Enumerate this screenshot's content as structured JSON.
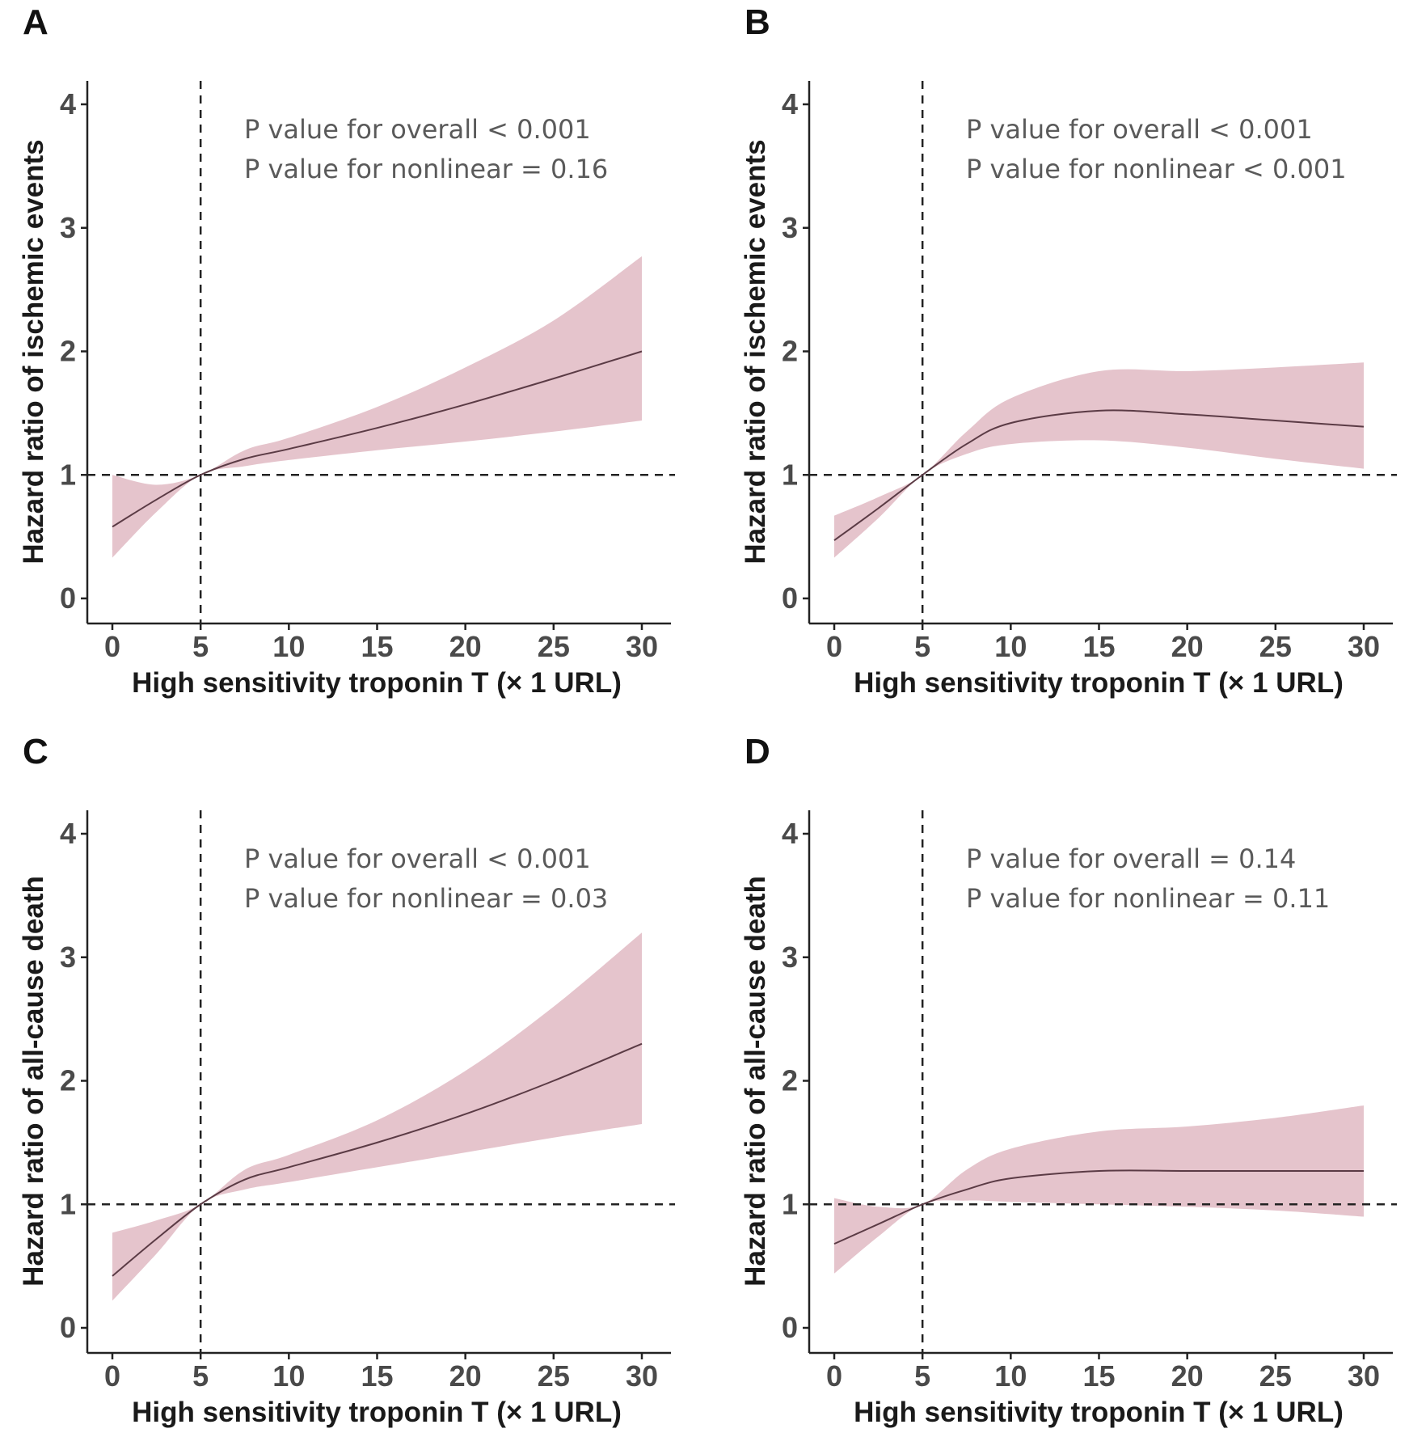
{
  "colors": {
    "ribbon": "#e5c4cc",
    "line": "#5b3b45",
    "axis": "#222222",
    "ref": "#222222"
  },
  "chart_data": [
    {
      "type": "line",
      "panel": "A",
      "xlabel": "High sensitivity troponin T (× 1 URL)",
      "ylabel": "Hazard ratio of ischemic events",
      "xlim": [
        0,
        30
      ],
      "ylim": [
        0,
        4
      ],
      "xticks": [
        "0",
        "5",
        "10",
        "15",
        "20",
        "25",
        "30"
      ],
      "yticks": [
        "0",
        "1",
        "2",
        "3",
        "4"
      ],
      "reference_lines": {
        "x": 5,
        "y": 1
      },
      "annotations": [
        "P value for overall < 0.001",
        "P value for nonlinear = 0.16"
      ],
      "x": [
        0,
        2.5,
        5,
        7.5,
        10,
        15,
        20,
        25,
        30
      ],
      "estimate": [
        0.58,
        0.8,
        1,
        1.13,
        1.21,
        1.38,
        1.57,
        1.78,
        2.0
      ],
      "lower": [
        0.33,
        0.7,
        1,
        1.07,
        1.12,
        1.2,
        1.27,
        1.35,
        1.44
      ],
      "upper": [
        1.0,
        0.92,
        1,
        1.2,
        1.3,
        1.55,
        1.87,
        2.25,
        2.77
      ]
    },
    {
      "type": "line",
      "panel": "B",
      "xlabel": "High sensitivity troponin T (× 1 URL)",
      "ylabel": "Hazard ratio of ischemic events",
      "xlim": [
        0,
        30
      ],
      "ylim": [
        0,
        4
      ],
      "xticks": [
        "0",
        "5",
        "10",
        "15",
        "20",
        "25",
        "30"
      ],
      "yticks": [
        "0",
        "1",
        "2",
        "3",
        "4"
      ],
      "reference_lines": {
        "x": 5,
        "y": 1
      },
      "annotations": [
        "P value for overall < 0.001",
        "P value for nonlinear < 0.001"
      ],
      "x": [
        0,
        2.5,
        5,
        7.5,
        10,
        15,
        20,
        25,
        30
      ],
      "estimate": [
        0.47,
        0.73,
        1,
        1.25,
        1.42,
        1.52,
        1.49,
        1.44,
        1.39
      ],
      "lower": [
        0.33,
        0.65,
        1,
        1.17,
        1.25,
        1.28,
        1.22,
        1.13,
        1.05
      ],
      "upper": [
        0.67,
        0.82,
        1,
        1.35,
        1.62,
        1.84,
        1.84,
        1.87,
        1.91
      ]
    },
    {
      "type": "line",
      "panel": "C",
      "xlabel": "High sensitivity troponin T (× 1 URL)",
      "ylabel": "Hazard ratio of all-cause death",
      "xlim": [
        0,
        30
      ],
      "ylim": [
        0,
        4
      ],
      "xticks": [
        "0",
        "5",
        "10",
        "15",
        "20",
        "25",
        "30"
      ],
      "yticks": [
        "0",
        "1",
        "2",
        "3",
        "4"
      ],
      "reference_lines": {
        "x": 5,
        "y": 1
      },
      "annotations": [
        "P value for overall < 0.001",
        "P value for nonlinear = 0.03"
      ],
      "x": [
        0,
        2.5,
        5,
        7.5,
        10,
        15,
        20,
        25,
        30
      ],
      "estimate": [
        0.42,
        0.72,
        1,
        1.2,
        1.3,
        1.5,
        1.73,
        2.0,
        2.3
      ],
      "lower": [
        0.22,
        0.6,
        1,
        1.12,
        1.18,
        1.3,
        1.42,
        1.54,
        1.65
      ],
      "upper": [
        0.77,
        0.87,
        1,
        1.28,
        1.4,
        1.68,
        2.08,
        2.6,
        3.2
      ]
    },
    {
      "type": "line",
      "panel": "D",
      "xlabel": "High sensitivity troponin T (× 1 URL)",
      "ylabel": "Hazard ratio of all-cause death",
      "xlim": [
        0,
        30
      ],
      "ylim": [
        0,
        4
      ],
      "xticks": [
        "0",
        "5",
        "10",
        "15",
        "20",
        "25",
        "30"
      ],
      "yticks": [
        "0",
        "1",
        "2",
        "3",
        "4"
      ],
      "reference_lines": {
        "x": 5,
        "y": 1
      },
      "annotations": [
        "P value for overall = 0.14",
        "P value for nonlinear = 0.11"
      ],
      "x": [
        0,
        2.5,
        5,
        7.5,
        10,
        15,
        20,
        25,
        30
      ],
      "estimate": [
        0.68,
        0.84,
        1,
        1.12,
        1.21,
        1.27,
        1.27,
        1.27,
        1.27
      ],
      "lower": [
        0.44,
        0.74,
        1,
        1.03,
        1.02,
        1.0,
        0.98,
        0.95,
        0.9
      ],
      "upper": [
        1.05,
        0.98,
        1,
        1.28,
        1.45,
        1.59,
        1.63,
        1.7,
        1.8
      ]
    }
  ]
}
